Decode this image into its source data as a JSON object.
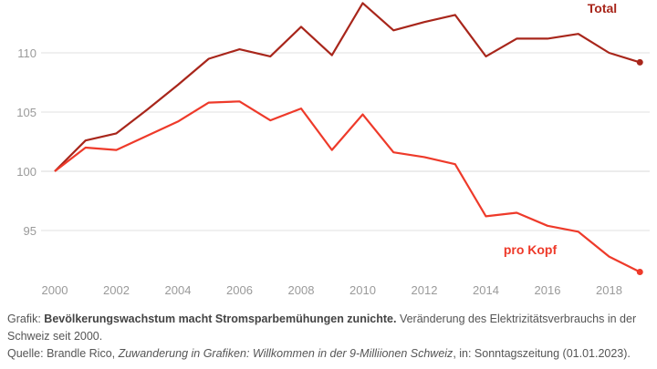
{
  "chart_data": {
    "type": "line",
    "x": [
      2000,
      2001,
      2002,
      2003,
      2004,
      2005,
      2006,
      2007,
      2008,
      2009,
      2010,
      2011,
      2012,
      2013,
      2014,
      2015,
      2016,
      2017,
      2018,
      2019
    ],
    "series": [
      {
        "name": "Total",
        "color": "#a8261b",
        "values": [
          100,
          102.6,
          103.2,
          105.2,
          107.3,
          109.5,
          110.3,
          109.7,
          112.2,
          109.8,
          114.2,
          111.9,
          112.6,
          113.2,
          109.7,
          111.2,
          111.2,
          111.6,
          110.0,
          109.2
        ]
      },
      {
        "name": "pro Kopf",
        "color": "#ee3a2a",
        "values": [
          100,
          102.0,
          101.8,
          103.0,
          104.2,
          105.8,
          105.9,
          104.3,
          105.3,
          101.8,
          104.8,
          101.6,
          101.2,
          100.6,
          96.2,
          96.5,
          95.4,
          94.9,
          92.8,
          91.5
        ]
      }
    ],
    "yticks": [
      95,
      100,
      105,
      110
    ],
    "xticks": [
      2000,
      2002,
      2004,
      2006,
      2008,
      2010,
      2012,
      2014,
      2016,
      2018
    ],
    "ylim": [
      90.5,
      114.5
    ],
    "xlim": [
      2000,
      2019
    ],
    "grid": true,
    "title": "",
    "xlabel": "",
    "ylabel": ""
  },
  "caption": {
    "prefix": "Grafik: ",
    "title": "Bevölkerungswachstum macht Stromsparbemühungen zunichte.",
    "description": " Veränderung des Elektrizitätsverbrauchs in der Schweiz seit 2000.",
    "source_prefix": "Quelle: Brandle Rico, ",
    "source_title": "Zuwanderung in Grafiken: Willkommen in der 9-Milliionen Schweiz",
    "source_suffix": ", in: Sonntagszeitung (01.01.2023)."
  }
}
